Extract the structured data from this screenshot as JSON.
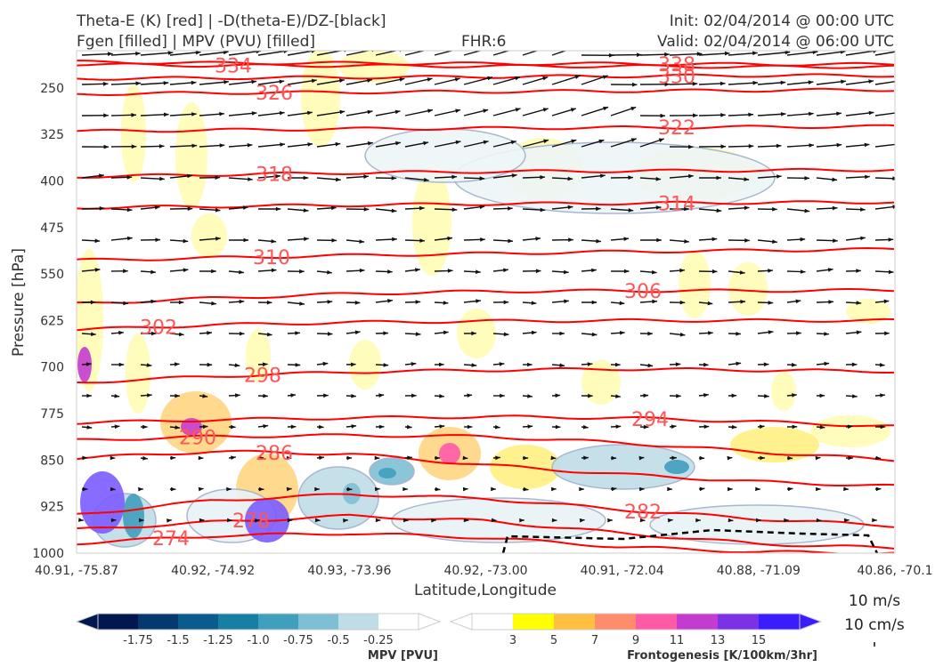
{
  "header": {
    "title_line1": "Theta-E (K) [red] | -D(theta-E)/DZ-[black]",
    "title_line2": "Fgen [filled] | MPV (PVU) [filled]",
    "fhr": "FHR:6",
    "init": "Init: 02/04/2014 @ 00:00 UTC",
    "valid": "Valid: 02/04/2014 @ 06:00 UTC"
  },
  "colors": {
    "theta_e": "#ff0000",
    "theta_e_label": "#ff5555",
    "vectors": "#111111",
    "fgen": [
      "#ffff00",
      "#ffc040",
      "#ff8c6a",
      "#ff5aa8",
      "#c43ccf",
      "#7b32e6",
      "#3a1cff"
    ],
    "mpv": [
      "#00174f",
      "#04396f",
      "#0a5c8c",
      "#177fa3",
      "#3f9fbd",
      "#7fbfd4",
      "#bfdde6",
      "#ffffff"
    ]
  },
  "chart_data": {
    "type": "cross-section",
    "xlabel": "Latitude,Longitude",
    "ylabel": "Pressure [hPa]",
    "x_ticks": [
      "40.91, -75.87",
      "40.92, -74.92",
      "40.93, -73.96",
      "40.92, -73.00",
      "40.91, -72.04",
      "40.88, -71.09",
      "40.86, -70.1"
    ],
    "y_ticks": [
      250,
      325,
      400,
      475,
      550,
      625,
      700,
      775,
      850,
      925,
      1000
    ],
    "ylim": [
      1000,
      190
    ],
    "theta_e_contours": [
      {
        "label": "338",
        "y": [
          208,
          210,
          210,
          211,
          211,
          212,
          212
        ]
      },
      {
        "label": "334",
        "y": [
          212,
          214,
          214,
          215,
          215,
          216,
          216
        ]
      },
      {
        "label": "330",
        "y": [
          235,
          234,
          233,
          232,
          231,
          230,
          230
        ]
      },
      {
        "label": "326",
        "y": [
          260,
          258,
          257,
          256,
          255,
          254,
          253
        ]
      },
      {
        "label": "322",
        "y": [
          320,
          318,
          316,
          315,
          314,
          313,
          312
        ]
      },
      {
        "label": "318",
        "y": [
          393,
          390,
          387,
          385,
          384,
          383,
          382
        ]
      },
      {
        "label": "314",
        "y": [
          443,
          441,
          439,
          437,
          436,
          435,
          434
        ]
      },
      {
        "label": "310",
        "y": [
          528,
          524,
          520,
          517,
          514,
          512,
          510
        ]
      },
      {
        "label": "306",
        "y": [
          598,
          589,
          582,
          578,
          577,
          577,
          576
        ]
      },
      {
        "label": "302",
        "y": [
          640,
          632,
          628,
          626,
          625,
          625,
          625
        ]
      },
      {
        "label": "298",
        "y": [
          725,
          715,
          708,
          705,
          703,
          705,
          707
        ]
      },
      {
        "label": "294",
        "y": [
          790,
          785,
          782,
          780,
          782,
          788,
          796
        ]
      },
      {
        "label": "290",
        "y": [
          818,
          812,
          810,
          812,
          822,
          837,
          850
        ]
      },
      {
        "label": "286",
        "y": [
          847,
          836,
          840,
          858,
          873,
          885,
          892
        ]
      },
      {
        "label": "282",
        "y": [
          938,
          915,
          905,
          912,
          930,
          945,
          956
        ]
      },
      {
        "label": "278",
        "y": [
          962,
          950,
          940,
          948,
          968,
          985,
          992
        ]
      },
      {
        "label": "274",
        "y": [
          984,
          972,
          968,
          975,
          990,
          998,
          1000
        ]
      }
    ],
    "fgen_levels": [
      3,
      5,
      7,
      9,
      11,
      13,
      15
    ],
    "fgen_units": "Frontogenesis [K/100km/3hr]",
    "mpv_levels": [
      -1.75,
      -1.5,
      -1.25,
      -1.0,
      -0.75,
      -0.5,
      -0.25
    ],
    "mpv_units": "MPV [PVU]",
    "vector_key": [
      "10 m/s",
      "10 cm/s"
    ]
  }
}
